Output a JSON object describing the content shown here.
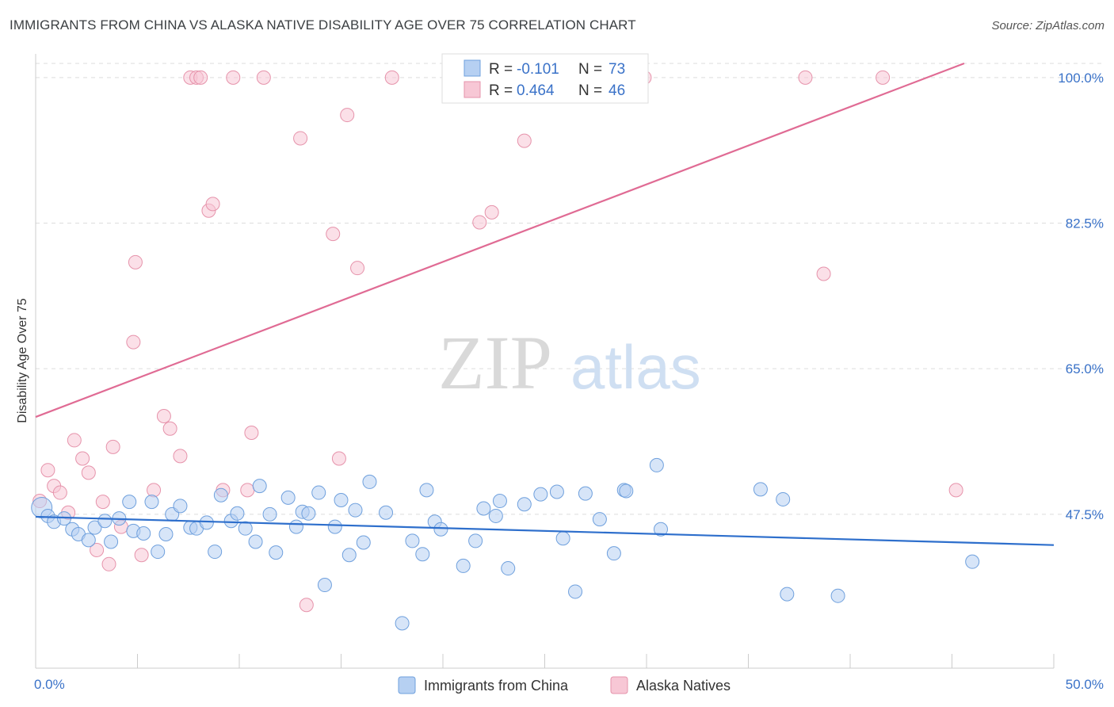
{
  "header": {
    "title": "IMMIGRANTS FROM CHINA VS ALASKA NATIVE DISABILITY AGE OVER 75 CORRELATION CHART",
    "source": "Source: ZipAtlas.com"
  },
  "watermark": {
    "zip": "ZIP",
    "atlas": "atlas"
  },
  "colors": {
    "blue_fill": "#b6d0f2",
    "blue_stroke": "#6fa0dd",
    "blue_line": "#2e6fcc",
    "pink_fill": "#f7c7d5",
    "pink_stroke": "#e693ab",
    "pink_line": "#e06b94",
    "tick_text": "#3a72c8",
    "grid": "#dddddd"
  },
  "legend": {
    "r_label": "R =",
    "n_label": "N =",
    "series": [
      {
        "r": "-0.101",
        "n": "73"
      },
      {
        "r": "0.464",
        "n": "46"
      }
    ]
  },
  "chart_data": {
    "type": "scatter",
    "title": "IMMIGRANTS FROM CHINA VS ALASKA NATIVE DISABILITY AGE OVER 75 CORRELATION CHART",
    "xlabel": "",
    "ylabel": "Disability Age Over 75",
    "xlim": [
      0,
      50
    ],
    "ylim": [
      29,
      101.7
    ],
    "x_tick_labels": [
      "0.0%",
      "50.0%"
    ],
    "y_ticks": [
      47.5,
      65.0,
      82.5,
      100.0
    ],
    "y_tick_labels": [
      "47.5%",
      "65.0%",
      "82.5%",
      "100.0%"
    ],
    "series": [
      {
        "name": "Immigrants from China",
        "color": "#6fa0dd",
        "r": -0.101,
        "n": 73,
        "trend": {
          "x": [
            0,
            50
          ],
          "y": [
            47.2,
            43.8
          ]
        },
        "points": [
          [
            0.3,
            48.3
          ],
          [
            0.6,
            47.3
          ],
          [
            0.9,
            46.6
          ],
          [
            1.4,
            47.0
          ],
          [
            1.8,
            45.7
          ],
          [
            2.1,
            45.1
          ],
          [
            2.6,
            44.4
          ],
          [
            2.9,
            45.9
          ],
          [
            3.4,
            46.7
          ],
          [
            3.7,
            44.2
          ],
          [
            4.1,
            47.0
          ],
          [
            4.6,
            49.0
          ],
          [
            4.8,
            45.5
          ],
          [
            5.3,
            45.2
          ],
          [
            5.7,
            49.0
          ],
          [
            6.0,
            43.0
          ],
          [
            6.4,
            45.1
          ],
          [
            6.7,
            47.5
          ],
          [
            7.1,
            48.5
          ],
          [
            7.6,
            45.9
          ],
          [
            7.9,
            45.8
          ],
          [
            8.4,
            46.5
          ],
          [
            8.8,
            43.0
          ],
          [
            9.1,
            49.8
          ],
          [
            9.6,
            46.7
          ],
          [
            9.9,
            47.6
          ],
          [
            10.3,
            45.8
          ],
          [
            10.8,
            44.2
          ],
          [
            11.0,
            50.9
          ],
          [
            11.5,
            47.5
          ],
          [
            11.8,
            42.9
          ],
          [
            12.4,
            49.5
          ],
          [
            12.8,
            46.0
          ],
          [
            13.1,
            47.8
          ],
          [
            13.4,
            47.6
          ],
          [
            13.9,
            50.1
          ],
          [
            14.2,
            39.0
          ],
          [
            14.7,
            46.0
          ],
          [
            15.0,
            49.2
          ],
          [
            15.4,
            42.6
          ],
          [
            15.7,
            48.0
          ],
          [
            16.1,
            44.1
          ],
          [
            16.4,
            51.4
          ],
          [
            17.2,
            47.7
          ],
          [
            18.0,
            34.4
          ],
          [
            18.5,
            44.3
          ],
          [
            19.0,
            42.7
          ],
          [
            19.2,
            50.4
          ],
          [
            19.6,
            46.6
          ],
          [
            19.9,
            45.7
          ],
          [
            21.0,
            41.3
          ],
          [
            21.6,
            44.3
          ],
          [
            22.0,
            48.2
          ],
          [
            22.6,
            47.3
          ],
          [
            22.8,
            49.1
          ],
          [
            23.2,
            41.0
          ],
          [
            24.0,
            48.7
          ],
          [
            24.8,
            49.9
          ],
          [
            25.6,
            50.2
          ],
          [
            25.9,
            44.6
          ],
          [
            26.5,
            38.2
          ],
          [
            27.0,
            50.0
          ],
          [
            27.7,
            46.9
          ],
          [
            28.4,
            42.8
          ],
          [
            28.9,
            50.4
          ],
          [
            29.0,
            50.3
          ],
          [
            30.5,
            53.4
          ],
          [
            30.7,
            45.7
          ],
          [
            35.6,
            50.5
          ],
          [
            36.7,
            49.3
          ],
          [
            36.9,
            37.9
          ],
          [
            39.4,
            37.7
          ],
          [
            46.0,
            41.8
          ]
        ]
      },
      {
        "name": "Alaska Natives",
        "color": "#e693ab",
        "r": 0.464,
        "n": 46,
        "trend": {
          "x": [
            0,
            45.6
          ],
          "y": [
            59.2,
            101.7
          ]
        },
        "points": [
          [
            0.2,
            49.1
          ],
          [
            0.6,
            52.8
          ],
          [
            0.9,
            50.9
          ],
          [
            1.2,
            50.1
          ],
          [
            1.6,
            47.7
          ],
          [
            1.9,
            56.4
          ],
          [
            2.3,
            54.2
          ],
          [
            2.6,
            52.5
          ],
          [
            3.0,
            43.2
          ],
          [
            3.3,
            49.0
          ],
          [
            3.6,
            41.5
          ],
          [
            3.8,
            55.6
          ],
          [
            4.2,
            46.0
          ],
          [
            4.8,
            68.2
          ],
          [
            4.9,
            77.8
          ],
          [
            5.2,
            42.6
          ],
          [
            5.8,
            50.4
          ],
          [
            6.3,
            59.3
          ],
          [
            6.6,
            57.8
          ],
          [
            7.1,
            54.5
          ],
          [
            7.6,
            100.0
          ],
          [
            7.9,
            100.0
          ],
          [
            8.1,
            100.0
          ],
          [
            8.5,
            84.0
          ],
          [
            8.7,
            84.8
          ],
          [
            9.2,
            50.4
          ],
          [
            9.7,
            100.0
          ],
          [
            10.4,
            50.4
          ],
          [
            10.6,
            57.3
          ],
          [
            11.2,
            100.0
          ],
          [
            13.0,
            92.7
          ],
          [
            13.3,
            36.6
          ],
          [
            14.6,
            81.2
          ],
          [
            14.9,
            54.2
          ],
          [
            15.3,
            95.5
          ],
          [
            15.8,
            77.1
          ],
          [
            17.5,
            100.0
          ],
          [
            20.7,
            100.0
          ],
          [
            21.8,
            82.6
          ],
          [
            22.4,
            83.8
          ],
          [
            24.0,
            92.4
          ],
          [
            29.9,
            100.0
          ],
          [
            37.8,
            100.0
          ],
          [
            38.7,
            76.4
          ],
          [
            41.6,
            100.0
          ],
          [
            45.2,
            50.4
          ]
        ]
      }
    ]
  },
  "bottom_legend": {
    "series_a": "Immigrants from China",
    "series_b": "Alaska Natives"
  }
}
